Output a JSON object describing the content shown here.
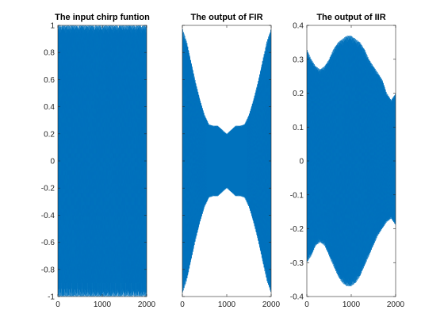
{
  "chart_data": [
    {
      "type": "line",
      "title": "The input chirp funtion",
      "xlabel": "",
      "ylabel": "",
      "xlim": [
        0,
        2000
      ],
      "ylim": [
        -1,
        1
      ],
      "xticks": [
        "0",
        "1000",
        "2000"
      ],
      "xtick_values": [
        0,
        1000,
        2000
      ],
      "yticks": [
        "1",
        "0.8",
        "0.6",
        "0.4",
        "0.2",
        "0",
        "-0.2",
        "-0.4",
        "-0.6",
        "-0.8",
        "-1"
      ],
      "ytick_values": [
        1,
        0.8,
        0.6,
        0.4,
        0.2,
        0,
        -0.2,
        -0.4,
        -0.6,
        -0.8,
        -1
      ],
      "series_color": "#0072BD",
      "envelope": {
        "x": [
          0,
          200,
          400,
          600,
          800,
          1000,
          1200,
          1400,
          1600,
          1800,
          2000
        ],
        "upper": [
          1,
          1,
          1,
          1,
          1,
          1,
          1,
          1,
          1,
          1,
          1
        ],
        "lower": [
          -1,
          -1,
          -1,
          -1,
          -1,
          -1,
          -1,
          -1,
          -1,
          -1,
          -1
        ]
      }
    },
    {
      "type": "line",
      "title": "The output of FIR",
      "xlabel": "",
      "ylabel": "",
      "xlim": [
        0,
        2000
      ],
      "ylim": [
        -1,
        1
      ],
      "xticks": [
        "0",
        "1000",
        "2000"
      ],
      "xtick_values": [
        0,
        1000,
        2000
      ],
      "yticks": [],
      "ytick_values": [
        1,
        0.8,
        0.6,
        0.4,
        0.2,
        0,
        -0.2,
        -0.4,
        -0.6,
        -0.8,
        -1
      ],
      "series_color": "#0072BD",
      "envelope": {
        "x": [
          0,
          100,
          200,
          300,
          400,
          500,
          600,
          700,
          800,
          900,
          1000,
          1100,
          1200,
          1300,
          1400,
          1500,
          1600,
          1700,
          1800,
          1900,
          2000
        ],
        "upper": [
          0.98,
          0.88,
          0.73,
          0.58,
          0.45,
          0.34,
          0.27,
          0.26,
          0.26,
          0.23,
          0.2,
          0.23,
          0.26,
          0.26,
          0.27,
          0.34,
          0.45,
          0.58,
          0.73,
          0.88,
          0.98
        ],
        "lower": [
          -0.98,
          -0.88,
          -0.73,
          -0.58,
          -0.45,
          -0.34,
          -0.27,
          -0.26,
          -0.26,
          -0.23,
          -0.2,
          -0.23,
          -0.26,
          -0.26,
          -0.27,
          -0.34,
          -0.45,
          -0.58,
          -0.73,
          -0.88,
          -0.98
        ]
      }
    },
    {
      "type": "line",
      "title": "The output of IIR",
      "xlabel": "",
      "ylabel": "",
      "xlim": [
        0,
        2000
      ],
      "ylim": [
        -0.4,
        0.4
      ],
      "xticks": [
        "0",
        "1000",
        "2000"
      ],
      "xtick_values": [
        0,
        1000,
        2000
      ],
      "yticks": [
        "0.4",
        "0.3",
        "0.2",
        "0.1",
        "0",
        "-0.1",
        "-0.2",
        "-0.3",
        "-0.4"
      ],
      "ytick_values": [
        0.4,
        0.3,
        0.2,
        0.1,
        0,
        -0.1,
        -0.2,
        -0.3,
        -0.4
      ],
      "series_color": "#0072BD",
      "envelope": {
        "x": [
          0,
          100,
          200,
          300,
          400,
          500,
          600,
          700,
          800,
          900,
          1000,
          1100,
          1200,
          1300,
          1400,
          1500,
          1600,
          1700,
          1800,
          1900,
          2000
        ],
        "upper": [
          0.33,
          0.3,
          0.28,
          0.27,
          0.28,
          0.3,
          0.33,
          0.35,
          0.36,
          0.37,
          0.37,
          0.36,
          0.35,
          0.33,
          0.3,
          0.28,
          0.26,
          0.24,
          0.2,
          0.18,
          0.2
        ],
        "lower": [
          -0.3,
          -0.28,
          -0.25,
          -0.24,
          -0.25,
          -0.28,
          -0.31,
          -0.34,
          -0.36,
          -0.37,
          -0.37,
          -0.36,
          -0.34,
          -0.31,
          -0.28,
          -0.25,
          -0.22,
          -0.2,
          -0.18,
          -0.17,
          -0.19
        ]
      }
    }
  ]
}
